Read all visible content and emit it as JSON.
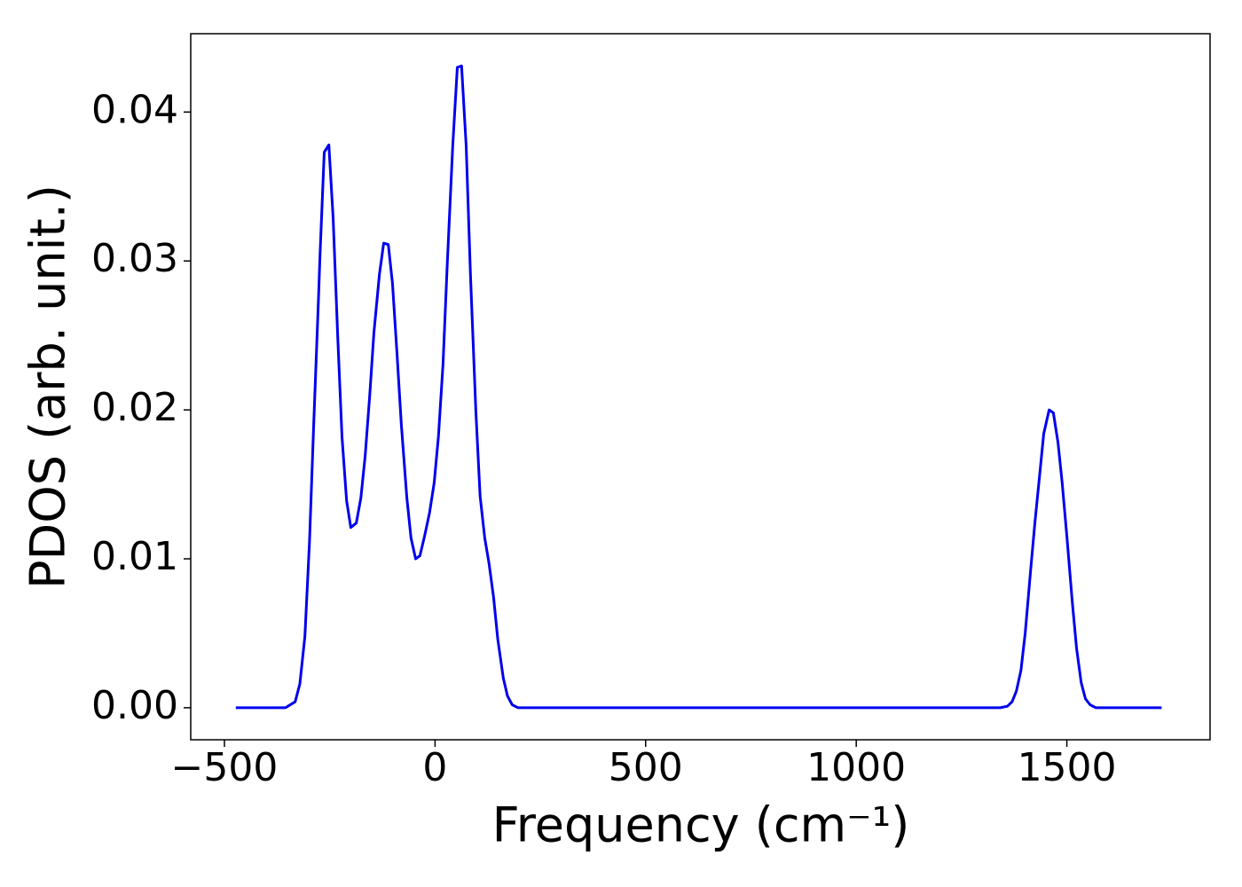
{
  "chart_data": {
    "type": "line",
    "xlabel": "Frequency (cm⁻¹)",
    "ylabel": "PDOS (arb. unit.)",
    "x": [
      -473,
      -355,
      -332,
      -321,
      -309,
      -298,
      -288,
      -277,
      -273,
      -263,
      -252,
      -242,
      -231,
      -221,
      -210,
      -200,
      -187,
      -176,
      -166,
      -155,
      -145,
      -132,
      -122,
      -111,
      -101,
      -90,
      -80,
      -67,
      -57,
      -46,
      -36,
      -25,
      -13,
      -2,
      8,
      19,
      29,
      42,
      53,
      63,
      74,
      84,
      97,
      107,
      118,
      128,
      139,
      149,
      162,
      172,
      183,
      197,
      1342,
      1359,
      1370,
      1380,
      1391,
      1401,
      1414,
      1424,
      1435,
      1445,
      1458,
      1468,
      1479,
      1489,
      1500,
      1513,
      1523,
      1534,
      1544,
      1555,
      1569,
      1725
    ],
    "series": [
      {
        "color": "#0000ee",
        "values": [
          0,
          0,
          0.0004,
          0.0016,
          0.0048,
          0.0112,
          0.019,
          0.0273,
          0.0305,
          0.0373,
          0.0378,
          0.0329,
          0.0249,
          0.0182,
          0.0139,
          0.0121,
          0.0124,
          0.0141,
          0.0169,
          0.021,
          0.0252,
          0.0291,
          0.0312,
          0.0311,
          0.0285,
          0.0237,
          0.019,
          0.0141,
          0.0114,
          0.01,
          0.0102,
          0.0115,
          0.0131,
          0.0151,
          0.0182,
          0.0231,
          0.0297,
          0.0377,
          0.043,
          0.0431,
          0.0377,
          0.0291,
          0.0199,
          0.0142,
          0.0114,
          0.0097,
          0.0074,
          0.0046,
          0.002,
          0.0008,
          0.0002,
          0,
          0,
          0.0001,
          0.0004,
          0.0011,
          0.0025,
          0.005,
          0.0092,
          0.0124,
          0.0155,
          0.0184,
          0.02,
          0.0198,
          0.0178,
          0.0151,
          0.0115,
          0.0071,
          0.004,
          0.0017,
          0.0006,
          0.0002,
          0,
          0
        ]
      }
    ],
    "xlim": [
      -580,
      1840
    ],
    "xticks": [
      {
        "value": -500,
        "label": "−500"
      },
      0,
      500,
      1000,
      1500
    ],
    "ylim": [
      -0.00215,
      0.04526
    ],
    "yticks": [
      {
        "value": 0,
        "label": "0.00"
      },
      {
        "value": 0.01,
        "label": "0.01"
      },
      {
        "value": 0.02,
        "label": "0.02"
      },
      {
        "value": 0.03,
        "label": "0.03"
      },
      {
        "value": 0.04,
        "label": "0.04"
      }
    ]
  }
}
